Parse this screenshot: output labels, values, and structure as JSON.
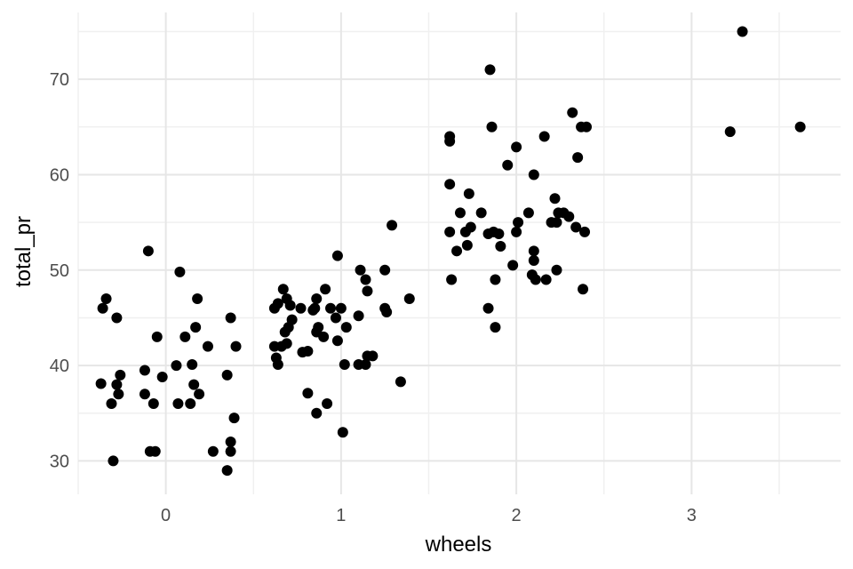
{
  "chart_data": {
    "type": "scatter",
    "title": "",
    "xlabel": "wheels",
    "ylabel": "total_pr",
    "xlim": [
      -0.5,
      3.85
    ],
    "ylim": [
      26.5,
      77
    ],
    "x_ticks": [
      0,
      1,
      2,
      3
    ],
    "x_minor": [
      -0.5,
      0.5,
      1.5,
      2.5,
      3.5
    ],
    "y_ticks": [
      30,
      40,
      50,
      60,
      70
    ],
    "y_minor": [
      35,
      45,
      55,
      65,
      75
    ],
    "grid": true,
    "legend": "none",
    "point_color": "#000000",
    "points": [
      {
        "x": -0.37,
        "y": 38.1
      },
      {
        "x": -0.36,
        "y": 46.0
      },
      {
        "x": -0.34,
        "y": 47.0
      },
      {
        "x": -0.31,
        "y": 36.0
      },
      {
        "x": -0.3,
        "y": 30.0
      },
      {
        "x": -0.28,
        "y": 38.0
      },
      {
        "x": -0.28,
        "y": 45.0
      },
      {
        "x": -0.27,
        "y": 37.0
      },
      {
        "x": -0.26,
        "y": 39.0
      },
      {
        "x": -0.12,
        "y": 39.5
      },
      {
        "x": -0.12,
        "y": 37.0
      },
      {
        "x": -0.1,
        "y": 52.0
      },
      {
        "x": -0.09,
        "y": 31.0
      },
      {
        "x": -0.07,
        "y": 36.0
      },
      {
        "x": -0.06,
        "y": 31.0
      },
      {
        "x": -0.05,
        "y": 43.0
      },
      {
        "x": -0.02,
        "y": 38.8
      },
      {
        "x": 0.06,
        "y": 40.0
      },
      {
        "x": 0.07,
        "y": 36.0
      },
      {
        "x": 0.08,
        "y": 49.8
      },
      {
        "x": 0.11,
        "y": 43.0
      },
      {
        "x": 0.14,
        "y": 36.0
      },
      {
        "x": 0.15,
        "y": 40.1
      },
      {
        "x": 0.16,
        "y": 38.0
      },
      {
        "x": 0.17,
        "y": 44.0
      },
      {
        "x": 0.18,
        "y": 47.0
      },
      {
        "x": 0.19,
        "y": 37.0
      },
      {
        "x": 0.24,
        "y": 42.0
      },
      {
        "x": 0.27,
        "y": 31.0
      },
      {
        "x": 0.35,
        "y": 39.0
      },
      {
        "x": 0.35,
        "y": 29.0
      },
      {
        "x": 0.37,
        "y": 45.0
      },
      {
        "x": 0.37,
        "y": 32.0
      },
      {
        "x": 0.37,
        "y": 31.0
      },
      {
        "x": 0.39,
        "y": 34.5
      },
      {
        "x": 0.4,
        "y": 42.0
      },
      {
        "x": 0.62,
        "y": 42.0
      },
      {
        "x": 0.62,
        "y": 46.0
      },
      {
        "x": 0.63,
        "y": 40.8
      },
      {
        "x": 0.64,
        "y": 46.5
      },
      {
        "x": 0.64,
        "y": 40.1
      },
      {
        "x": 0.66,
        "y": 42.0
      },
      {
        "x": 0.67,
        "y": 48.0
      },
      {
        "x": 0.68,
        "y": 43.5
      },
      {
        "x": 0.69,
        "y": 42.3
      },
      {
        "x": 0.69,
        "y": 47.0
      },
      {
        "x": 0.7,
        "y": 44.0
      },
      {
        "x": 0.71,
        "y": 46.3
      },
      {
        "x": 0.72,
        "y": 44.8
      },
      {
        "x": 0.77,
        "y": 46.0
      },
      {
        "x": 0.78,
        "y": 41.4
      },
      {
        "x": 0.81,
        "y": 41.5
      },
      {
        "x": 0.81,
        "y": 37.1
      },
      {
        "x": 0.84,
        "y": 45.8
      },
      {
        "x": 0.85,
        "y": 46.0
      },
      {
        "x": 0.86,
        "y": 47.0
      },
      {
        "x": 0.86,
        "y": 43.5
      },
      {
        "x": 0.86,
        "y": 35.0
      },
      {
        "x": 0.87,
        "y": 44.0
      },
      {
        "x": 0.9,
        "y": 43.0
      },
      {
        "x": 0.91,
        "y": 48.0
      },
      {
        "x": 0.92,
        "y": 36.0
      },
      {
        "x": 0.94,
        "y": 46.0
      },
      {
        "x": 0.97,
        "y": 45.0
      },
      {
        "x": 0.98,
        "y": 51.5
      },
      {
        "x": 0.98,
        "y": 42.6
      },
      {
        "x": 1.0,
        "y": 46.0
      },
      {
        "x": 1.01,
        "y": 33.0
      },
      {
        "x": 1.02,
        "y": 40.1
      },
      {
        "x": 1.03,
        "y": 44.0
      },
      {
        "x": 1.1,
        "y": 45.2
      },
      {
        "x": 1.1,
        "y": 40.1
      },
      {
        "x": 1.11,
        "y": 50.0
      },
      {
        "x": 1.14,
        "y": 40.1
      },
      {
        "x": 1.14,
        "y": 49.0
      },
      {
        "x": 1.15,
        "y": 47.8
      },
      {
        "x": 1.15,
        "y": 41.0
      },
      {
        "x": 1.18,
        "y": 41.0
      },
      {
        "x": 1.25,
        "y": 50.0
      },
      {
        "x": 1.25,
        "y": 46.0
      },
      {
        "x": 1.26,
        "y": 45.6
      },
      {
        "x": 1.29,
        "y": 54.7
      },
      {
        "x": 1.34,
        "y": 38.3
      },
      {
        "x": 1.39,
        "y": 47.0
      },
      {
        "x": 1.62,
        "y": 64.0
      },
      {
        "x": 1.62,
        "y": 63.5
      },
      {
        "x": 1.62,
        "y": 59.0
      },
      {
        "x": 1.62,
        "y": 54.0
      },
      {
        "x": 1.63,
        "y": 49.0
      },
      {
        "x": 1.66,
        "y": 52.0
      },
      {
        "x": 1.68,
        "y": 56.0
      },
      {
        "x": 1.71,
        "y": 54.0
      },
      {
        "x": 1.72,
        "y": 52.6
      },
      {
        "x": 1.73,
        "y": 58.0
      },
      {
        "x": 1.74,
        "y": 54.5
      },
      {
        "x": 1.8,
        "y": 56.0
      },
      {
        "x": 1.84,
        "y": 46.0
      },
      {
        "x": 1.84,
        "y": 53.8
      },
      {
        "x": 1.85,
        "y": 71.0
      },
      {
        "x": 1.86,
        "y": 65.0
      },
      {
        "x": 1.87,
        "y": 54.0
      },
      {
        "x": 1.88,
        "y": 49.0
      },
      {
        "x": 1.88,
        "y": 44.0
      },
      {
        "x": 1.9,
        "y": 53.8
      },
      {
        "x": 1.91,
        "y": 52.5
      },
      {
        "x": 1.95,
        "y": 61.0
      },
      {
        "x": 1.98,
        "y": 50.5
      },
      {
        "x": 2.0,
        "y": 54.0
      },
      {
        "x": 2.0,
        "y": 62.9
      },
      {
        "x": 2.01,
        "y": 55.0
      },
      {
        "x": 2.07,
        "y": 56.0
      },
      {
        "x": 2.09,
        "y": 49.5
      },
      {
        "x": 2.1,
        "y": 60.0
      },
      {
        "x": 2.1,
        "y": 52.0
      },
      {
        "x": 2.1,
        "y": 51.0
      },
      {
        "x": 2.11,
        "y": 49.0
      },
      {
        "x": 2.16,
        "y": 64.0
      },
      {
        "x": 2.17,
        "y": 49.0
      },
      {
        "x": 2.2,
        "y": 55.0
      },
      {
        "x": 2.22,
        "y": 57.5
      },
      {
        "x": 2.23,
        "y": 50.0
      },
      {
        "x": 2.23,
        "y": 55.0
      },
      {
        "x": 2.24,
        "y": 56.0
      },
      {
        "x": 2.27,
        "y": 56.0
      },
      {
        "x": 2.3,
        "y": 55.6
      },
      {
        "x": 2.32,
        "y": 66.5
      },
      {
        "x": 2.34,
        "y": 54.5
      },
      {
        "x": 2.35,
        "y": 61.8
      },
      {
        "x": 2.37,
        "y": 65.0
      },
      {
        "x": 2.38,
        "y": 48.0
      },
      {
        "x": 2.39,
        "y": 54.0
      },
      {
        "x": 2.4,
        "y": 65.0
      },
      {
        "x": 3.22,
        "y": 64.5
      },
      {
        "x": 3.29,
        "y": 75.0
      },
      {
        "x": 3.62,
        "y": 65.0
      }
    ]
  }
}
